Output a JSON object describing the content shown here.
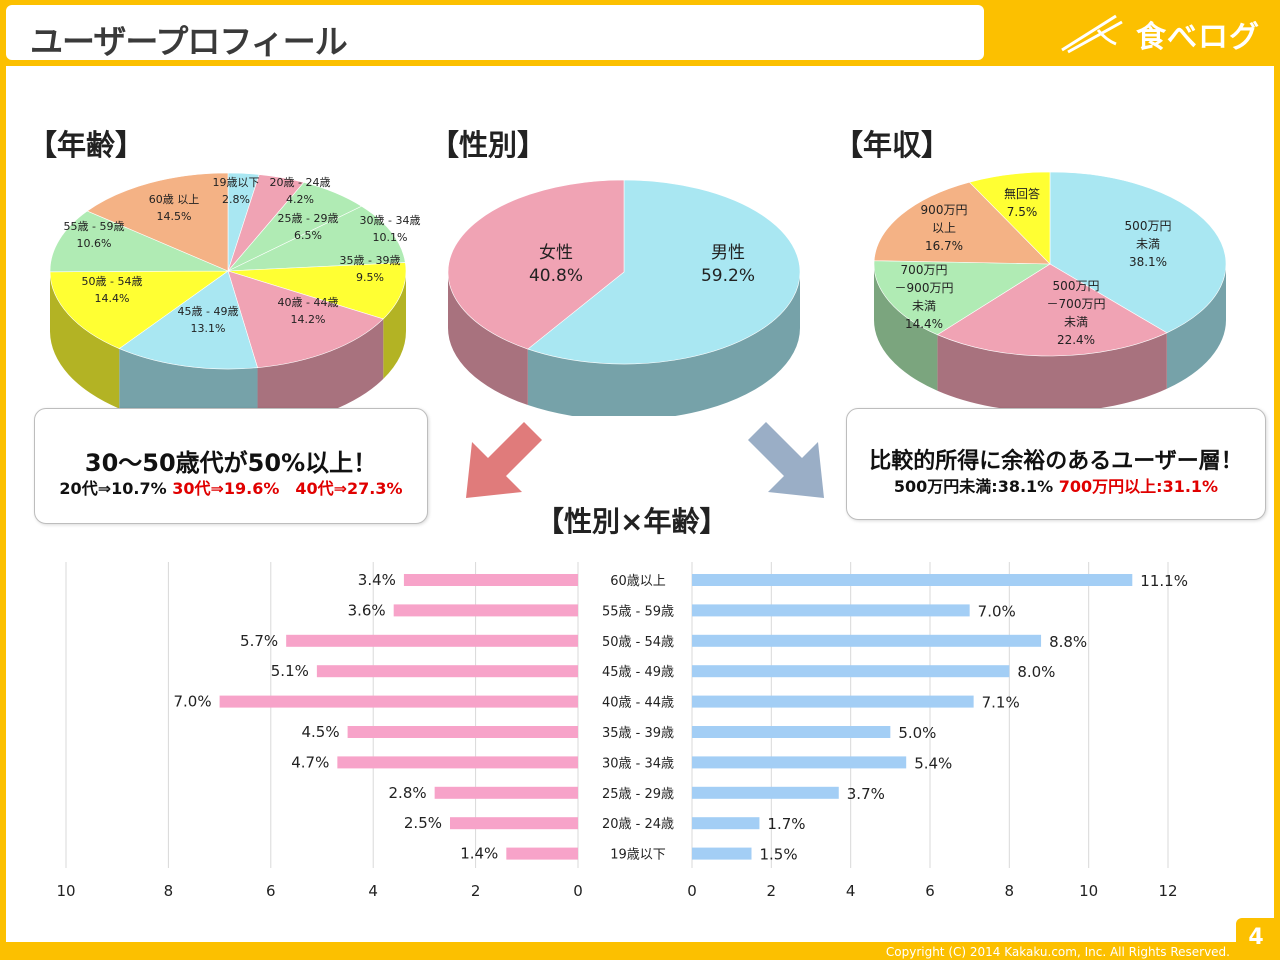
{
  "slide": {
    "title": "ユーザープロフィール",
    "logo": "食べログ",
    "footer": "Copyright (C) 2014 Kakaku.com, Inc. All Rights Reserved.",
    "page_number": "4"
  },
  "sections": {
    "age": "【年齢】",
    "gender": "【性別】",
    "income": "【年収】",
    "gender_age": "【性別×年齢】"
  },
  "callouts": {
    "left": {
      "headline": "30～50歳代が50%以上！",
      "line_black": "20代⇒10.7%",
      "line_red": "30代⇒19.6%　40代⇒27.3%"
    },
    "right": {
      "headline": "比較的所得に余裕のあるユーザー層！",
      "line_black": "500万円未満:38.1%",
      "line_red": "700万円以上:31.1%"
    }
  },
  "colors": {
    "female_bar": "#f7a3c9",
    "male_bar": "#a3cef5",
    "arrow_left": "#e07b7b",
    "arrow_right": "#9aaec6",
    "pie_cyan": "#a9e7f2",
    "pie_pink": "#f0a3b4",
    "pie_yellow": "#ffff33",
    "pie_green": "#b0ebb4",
    "pie_orange": "#f4b285"
  },
  "chart_data": [
    {
      "type": "pie",
      "title": "【年齢】",
      "slices": [
        {
          "label": "19歳以下",
          "value": 2.8,
          "color": "#a9e7f2"
        },
        {
          "label": "20歳 - 24歳",
          "value": 4.2,
          "color": "#f0a3b4"
        },
        {
          "label": "25歳 - 29歳",
          "value": 6.5,
          "color": "#b0ebb4"
        },
        {
          "label": "30歳 - 34歳",
          "value": 10.1,
          "color": "#b0ebb4"
        },
        {
          "label": "35歳 - 39歳",
          "value": 9.5,
          "color": "#ffff33"
        },
        {
          "label": "40歳 - 44歳",
          "value": 14.2,
          "color": "#f0a3b4"
        },
        {
          "label": "45歳 - 49歳",
          "value": 13.1,
          "color": "#a9e7f2"
        },
        {
          "label": "50歳 - 54歳",
          "value": 14.4,
          "color": "#ffff33"
        },
        {
          "label": "55歳 - 59歳",
          "value": 10.6,
          "color": "#b0ebb4"
        },
        {
          "label": "60歳 以上",
          "value": 14.5,
          "color": "#f4b285"
        }
      ]
    },
    {
      "type": "pie",
      "title": "【性別】",
      "slices": [
        {
          "label": "男性",
          "value": 59.2,
          "color": "#a9e7f2"
        },
        {
          "label": "女性",
          "value": 40.8,
          "color": "#f0a3b4"
        }
      ]
    },
    {
      "type": "pie",
      "title": "【年収】",
      "slices": [
        {
          "label": "500万円 未満",
          "value": 38.1,
          "color": "#a9e7f2"
        },
        {
          "label": "500万円 －700万円 未満",
          "value": 22.4,
          "color": "#f0a3b4"
        },
        {
          "label": "700万円 －900万円 未満",
          "value": 14.4,
          "color": "#b0ebb4"
        },
        {
          "label": "900万円 以上",
          "value": 16.7,
          "color": "#f4b285"
        },
        {
          "label": "無回答",
          "value": 7.5,
          "color": "#ffff33"
        }
      ]
    },
    {
      "type": "bar",
      "title": "【性別×年齢】",
      "orientation": "horizontal-butterfly",
      "categories": [
        "60歳以上",
        "55歳 - 59歳",
        "50歳 - 54歳",
        "45歳 - 49歳",
        "40歳 - 44歳",
        "35歳 - 39歳",
        "30歳 - 34歳",
        "25歳 - 29歳",
        "20歳 - 24歳",
        "19歳以下"
      ],
      "series": [
        {
          "values": [
            3.4,
            3.6,
            5.7,
            5.1,
            7.0,
            4.5,
            4.7,
            2.8,
            2.5,
            1.4
          ]
        },
        {
          "values": [
            11.1,
            7.0,
            8.8,
            8.0,
            7.1,
            5.0,
            5.4,
            3.7,
            1.7,
            1.5
          ]
        }
      ],
      "left_axis": {
        "ticks": [
          10,
          8,
          6,
          4,
          2,
          0
        ],
        "range": [
          0,
          10
        ]
      },
      "right_axis": {
        "ticks": [
          0,
          2,
          4,
          6,
          8,
          10,
          12
        ],
        "range": [
          0,
          12
        ]
      },
      "grid": true
    }
  ]
}
